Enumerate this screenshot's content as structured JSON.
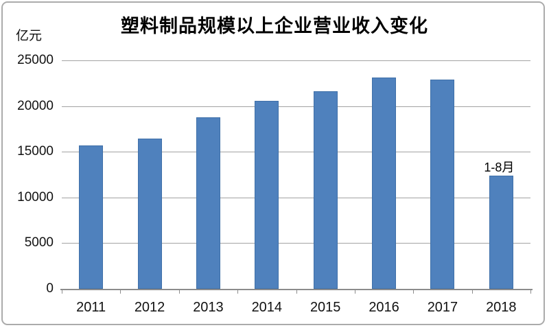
{
  "chart": {
    "title": "塑料制品规模以上企业营业收入变化",
    "unit_label": "亿元"
  },
  "chart_data": {
    "type": "bar",
    "title": "塑料制品规模以上企业营业收入变化",
    "ylabel": "亿元",
    "xlabel": "",
    "categories": [
      "2011",
      "2012",
      "2013",
      "2014",
      "2015",
      "2016",
      "2017",
      "2018"
    ],
    "values": [
      15700,
      16450,
      18800,
      20550,
      21600,
      23100,
      22900,
      12400
    ],
    "annotations": [
      {
        "text": "1-8月",
        "category": "2018",
        "position": "above-bar"
      }
    ],
    "ylim": [
      0,
      25000
    ],
    "yticks": [
      0,
      5000,
      10000,
      15000,
      20000,
      25000
    ],
    "grid": true,
    "legend": false,
    "colors": {
      "bar_fill": "#4F81BD",
      "bar_border": "#3E6FA8",
      "gridline": "#a2a2a2",
      "axis": "#8c8c8c",
      "text": "#111111"
    }
  }
}
